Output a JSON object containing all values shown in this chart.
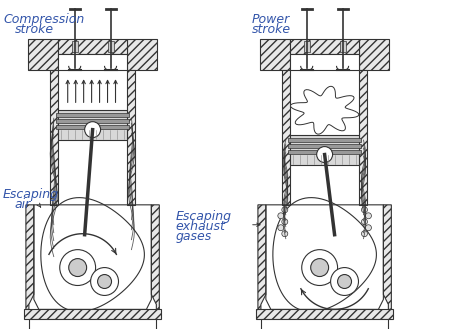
{
  "bg_color": "#ffffff",
  "label_color": "#3355aa",
  "line_color": "#333333",
  "hatch_color": "#555555",
  "left_label1": "Compression",
  "left_label2": "stroke",
  "right_label1": "Power",
  "right_label2": "stroke",
  "bottom_left1": "Escaping",
  "bottom_left2": "air",
  "bottom_right1": "Escaping",
  "bottom_right2": "exhaust",
  "bottom_right3": "gases",
  "figsize": [
    4.74,
    3.3
  ],
  "dpi": 100
}
